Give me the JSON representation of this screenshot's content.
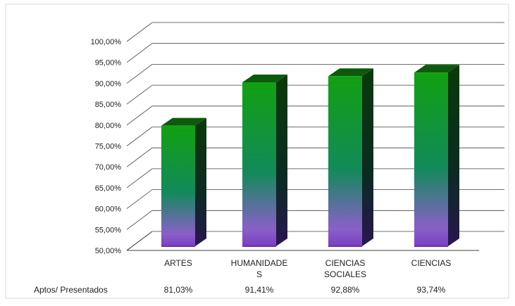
{
  "chart_data": {
    "type": "bar",
    "title": "",
    "xlabel": "",
    "ylabel": "",
    "categories": [
      "ARTES",
      "HUMANIDADES",
      "CIENCIAS SOCIALES",
      "CIENCIAS"
    ],
    "category_label_lines": [
      [
        "ARTES"
      ],
      [
        "HUMANIDADE",
        "S"
      ],
      [
        "CIENCIAS",
        "SOCIALES"
      ],
      [
        "CIENCIAS"
      ]
    ],
    "series": [
      {
        "name": "Aptos/ Presentados",
        "values": [
          81.03,
          91.41,
          92.88,
          93.74
        ]
      }
    ],
    "value_labels": [
      "81,03%",
      "91,41%",
      "92,88%",
      "93,74%"
    ],
    "ylim": [
      50,
      100
    ],
    "yticks": [
      50,
      55,
      60,
      65,
      70,
      75,
      80,
      85,
      90,
      95,
      100
    ],
    "ytick_labels": [
      "50,00%",
      "55,00%",
      "60,00%",
      "65,00%",
      "70,00%",
      "75,00%",
      "80,00%",
      "85,00%",
      "90,00%",
      "95,00%",
      "100,00%"
    ],
    "grid": true,
    "style": "3d-column",
    "data_table": {
      "row_label": "Aptos/ Presentados"
    },
    "colors": {
      "bar_top": "#11a011",
      "bar_mid": "#128a5a",
      "bar_bottom": "#8a5fc8",
      "bar_side": "#0c2a10",
      "bar_cap": "#0c5a0c",
      "grid": "#404040",
      "axis_text": "#222222"
    }
  }
}
